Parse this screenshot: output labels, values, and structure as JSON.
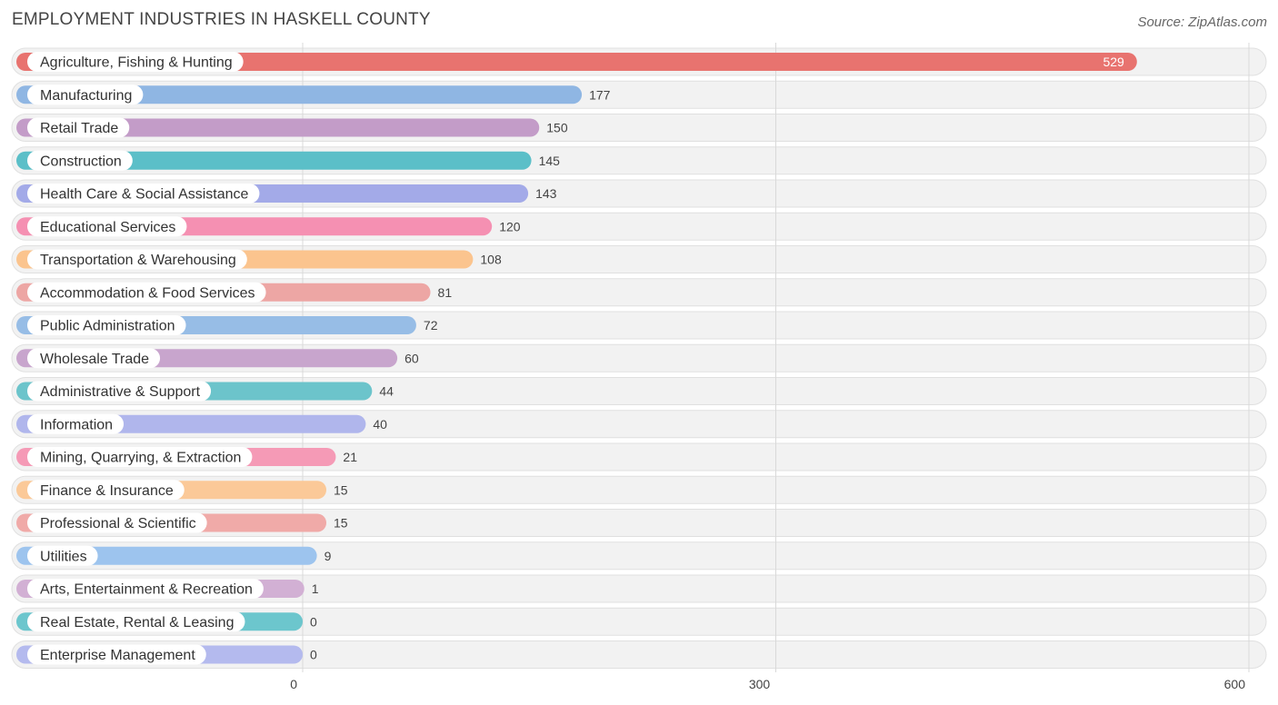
{
  "title": "EMPLOYMENT INDUSTRIES IN HASKELL COUNTY",
  "source": "Source: ZipAtlas.com",
  "chart_data": {
    "type": "bar",
    "orientation": "horizontal",
    "title": "EMPLOYMENT INDUSTRIES IN HASKELL COUNTY",
    "xlabel": "",
    "ylabel": "",
    "xlim": [
      0,
      600
    ],
    "ticks": [
      0,
      300,
      600
    ],
    "tick_labels": [
      "0",
      "300",
      "600"
    ],
    "grid": true,
    "categories": [
      "Agriculture, Fishing & Hunting",
      "Manufacturing",
      "Retail Trade",
      "Construction",
      "Health Care & Social Assistance",
      "Educational Services",
      "Transportation & Warehousing",
      "Accommodation & Food Services",
      "Public Administration",
      "Wholesale Trade",
      "Administrative & Support",
      "Information",
      "Mining, Quarrying, & Extraction",
      "Finance & Insurance",
      "Professional & Scientific",
      "Utilities",
      "Arts, Entertainment & Recreation",
      "Real Estate, Rental & Leasing",
      "Enterprise Management"
    ],
    "values": [
      529,
      177,
      150,
      145,
      143,
      120,
      108,
      81,
      72,
      60,
      44,
      40,
      21,
      15,
      15,
      9,
      1,
      0,
      0
    ],
    "colors": [
      "#e8736f",
      "#8fb6e3",
      "#c39cc8",
      "#5bbfc8",
      "#a3aae8",
      "#f590b2",
      "#fbc48e",
      "#eda6a4",
      "#97bde6",
      "#c8a5cd",
      "#6cc4cb",
      "#b0b6ec",
      "#f59ab6",
      "#fbc998",
      "#f0aaa8",
      "#9dc4ee",
      "#d2b0d4",
      "#6cc6cd",
      "#b4baee"
    ]
  }
}
